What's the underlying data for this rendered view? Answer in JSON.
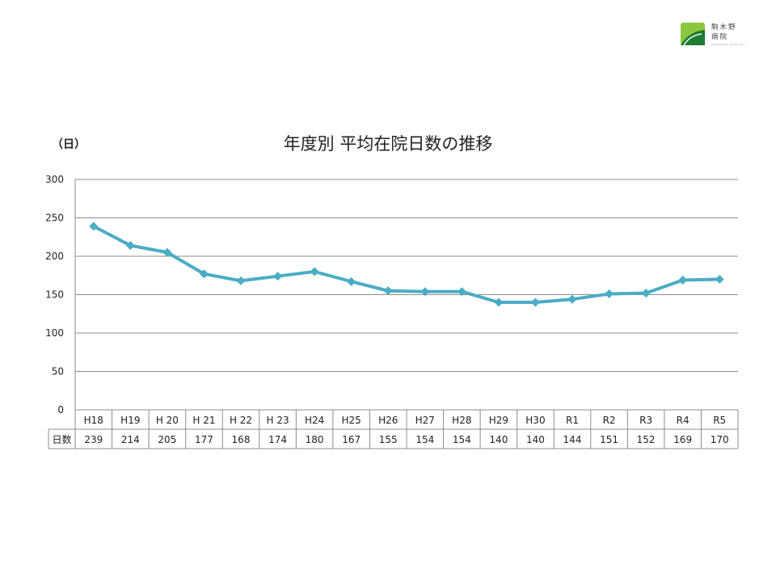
{
  "logo": {
    "name_line1": "駒木野",
    "name_line2": "病院",
    "subtext": "KOMAGINO HOSPITAL",
    "colors": {
      "light_green": "#8cc63f",
      "dark_green": "#1f7a32"
    }
  },
  "chart_data": {
    "type": "line",
    "title": "年度別 平均在院日数の推移",
    "ylabel": "（日）",
    "ylim": [
      0,
      300
    ],
    "yticks": [
      0,
      50,
      100,
      150,
      200,
      250,
      300
    ],
    "grid": true,
    "categories": [
      "H18",
      "H19",
      "H 20",
      "H 21",
      "H 22",
      "H 23",
      "H24",
      "H25",
      "H26",
      "H27",
      "H28",
      "H29",
      "H30",
      "R1",
      "R2",
      "R3",
      "R4",
      "R5"
    ],
    "series": [
      {
        "name": "日数",
        "values": [
          239,
          214,
          205,
          177,
          168,
          174,
          180,
          167,
          155,
          154,
          154,
          140,
          140,
          144,
          151,
          152,
          169,
          170
        ]
      }
    ],
    "line_color": "#4bacc6",
    "data_table": true
  }
}
